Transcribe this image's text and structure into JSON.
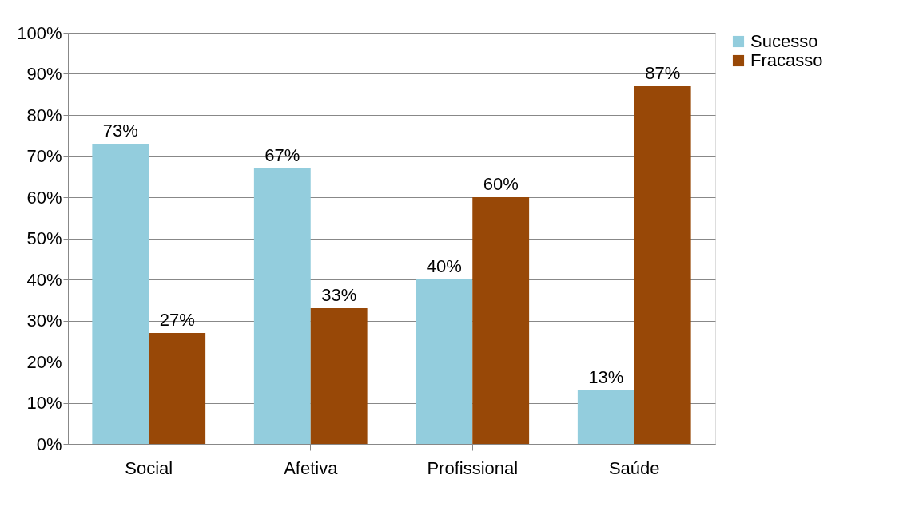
{
  "chart_data": {
    "type": "bar",
    "categories": [
      "Social",
      "Afetiva",
      "Profissional",
      "Saúde"
    ],
    "series": [
      {
        "name": "Sucesso",
        "color": "#93cddd",
        "values": [
          73,
          67,
          40,
          13
        ],
        "value_labels": [
          "73%",
          "67%",
          "40%",
          "13%"
        ]
      },
      {
        "name": "Fracasso",
        "color": "#984807",
        "values": [
          27,
          33,
          60,
          87
        ],
        "value_labels": [
          "27%",
          "33%",
          "60%",
          "87%"
        ]
      }
    ],
    "ylim": [
      0,
      100
    ],
    "yticks": [
      {
        "value": 0,
        "label": "0%"
      },
      {
        "value": 10,
        "label": "10%"
      },
      {
        "value": 20,
        "label": "20%"
      },
      {
        "value": 30,
        "label": "30%"
      },
      {
        "value": 40,
        "label": "40%"
      },
      {
        "value": 50,
        "label": "50%"
      },
      {
        "value": 60,
        "label": "60%"
      },
      {
        "value": 70,
        "label": "70%"
      },
      {
        "value": 80,
        "label": "80%"
      },
      {
        "value": 90,
        "label": "90%"
      },
      {
        "value": 100,
        "label": "100%"
      }
    ],
    "grid": "y",
    "legend": "right"
  }
}
